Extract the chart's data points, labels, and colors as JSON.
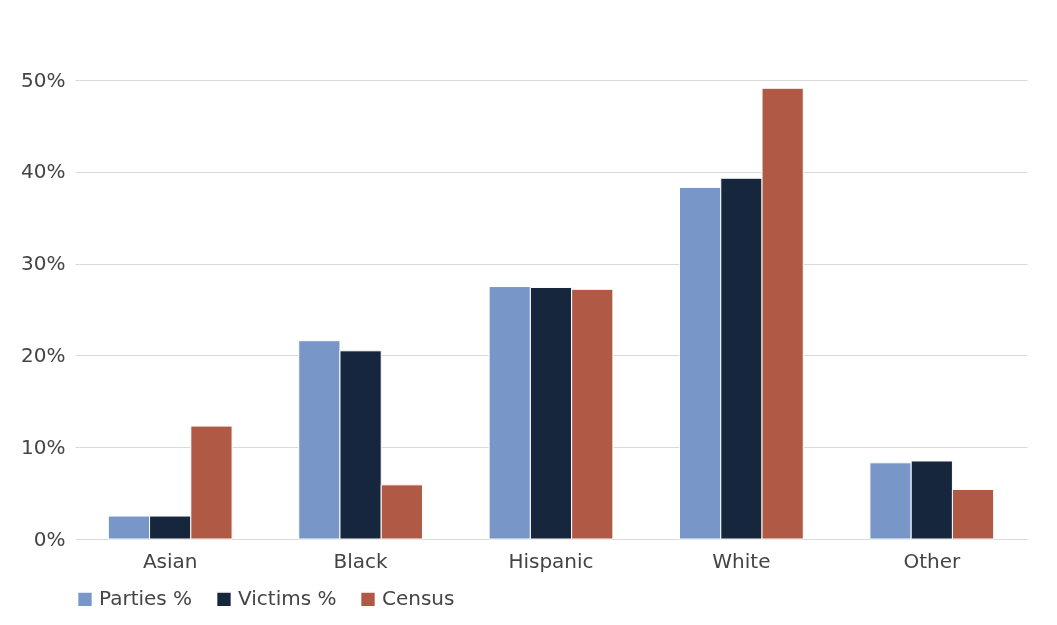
{
  "chart_data": {
    "type": "bar",
    "categories": [
      "Asian",
      "Black",
      "Hispanic",
      "White",
      "Other"
    ],
    "series": [
      {
        "name": "Parties %",
        "color": "#7896c8",
        "values": [
          2.5,
          21.6,
          27.5,
          38.3,
          8.3
        ]
      },
      {
        "name": "Victims %",
        "color": "#16263c",
        "values": [
          2.5,
          20.5,
          27.4,
          39.3,
          8.5
        ]
      },
      {
        "name": "Census",
        "color": "#b05a45",
        "values": [
          12.3,
          5.9,
          27.2,
          49.1,
          5.4
        ]
      }
    ],
    "ylim": [
      0,
      50
    ],
    "yticks": [
      {
        "value": 0,
        "label": "0%"
      },
      {
        "value": 10,
        "label": "10%"
      },
      {
        "value": 20,
        "label": "20%"
      },
      {
        "value": 30,
        "label": "30%"
      },
      {
        "value": 40,
        "label": "40%"
      },
      {
        "value": 50,
        "label": "50%"
      }
    ],
    "grid": "y",
    "legend": "bottom"
  }
}
